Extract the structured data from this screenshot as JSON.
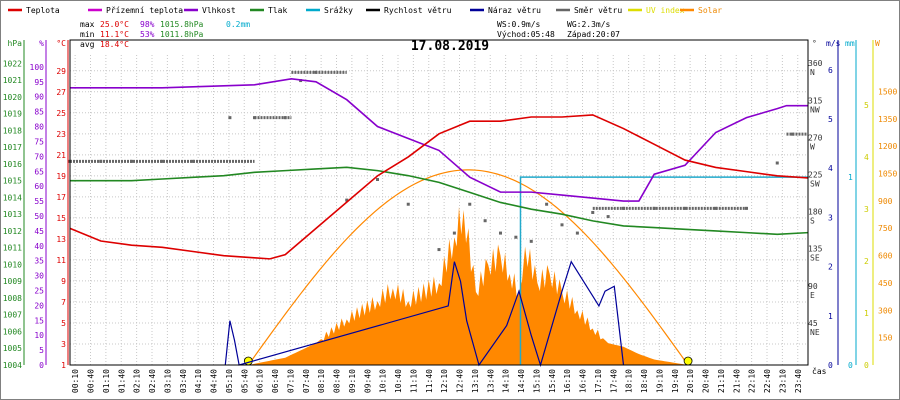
{
  "chart_data": {
    "type": "line",
    "title": "17.08.2019",
    "legend": {
      "placement": "top",
      "items": [
        {
          "name": "Teplota",
          "color": "#dd0000"
        },
        {
          "name": "Přízemní teplota",
          "color": "#cc00cc"
        },
        {
          "name": "Vlhkost",
          "color": "#8800cc"
        },
        {
          "name": "Tlak",
          "color": "#228822"
        },
        {
          "name": "Srážky",
          "color": "#00aacc"
        },
        {
          "name": "Rychlost větru",
          "color": "#000000"
        },
        {
          "name": "Náraz větru",
          "color": "#000099"
        },
        {
          "name": "Směr větru",
          "color": "#666666"
        },
        {
          "name": "UV index",
          "color": "#dddd00"
        },
        {
          "name": "Solar",
          "color": "#ff8800"
        }
      ]
    },
    "stats": {
      "max_label": "max",
      "max_temp": "25.0°C",
      "max_hum": "98%",
      "max_press": "1015.8hPa",
      "rain": "0.2mm",
      "min_label": "min",
      "min_temp": "11.1°C",
      "min_hum": "53%",
      "min_press": "1011.8hPa",
      "avg_label": "avg",
      "avg_temp": "18.4°C",
      "ws": "WS:0.9m/s",
      "wg": "WG:2.3m/s",
      "sunrise": "Východ:05:48",
      "sunset": "Západ:20:07"
    },
    "axes": {
      "hpa": {
        "label": "hPa",
        "ticks": [
          1004,
          1005,
          1006,
          1007,
          1008,
          1009,
          1010,
          1011,
          1012,
          1013,
          1014,
          1015,
          1016,
          1017,
          1018,
          1019,
          1020,
          1021,
          1022
        ]
      },
      "pct": {
        "label": "%",
        "ticks": [
          0,
          5,
          10,
          15,
          20,
          25,
          30,
          35,
          40,
          45,
          50,
          55,
          60,
          65,
          70,
          75,
          80,
          85,
          90,
          95,
          100
        ]
      },
      "temp": {
        "label": "°C",
        "ticks": [
          1,
          3,
          5,
          7,
          9,
          11,
          13,
          15,
          17,
          19,
          21,
          23,
          25,
          27,
          29
        ]
      },
      "dir": {
        "label": "°",
        "ticks": [
          "45 NE",
          "90 E",
          "135 SE",
          "180 S",
          "225 SW",
          "270 W",
          "315 NW",
          "360 N"
        ]
      },
      "ms": {
        "label": "m/s",
        "ticks": [
          0,
          1,
          2,
          3,
          4,
          5,
          6
        ]
      },
      "mm": {
        "label": "mm",
        "ticks": [
          0,
          1
        ]
      },
      "uv": {
        "label": "W",
        "ticks": [
          0,
          1,
          2,
          3,
          4,
          5
        ]
      },
      "solar": {
        "ticks": [
          150,
          300,
          450,
          600,
          750,
          900,
          1050,
          1200,
          1350,
          1500
        ]
      },
      "xlabel": "čas",
      "x_ticks": [
        "00:10",
        "00:40",
        "01:10",
        "01:40",
        "02:10",
        "02:40",
        "03:10",
        "03:40",
        "04:10",
        "04:40",
        "05:10",
        "05:40",
        "06:10",
        "06:40",
        "07:10",
        "07:40",
        "08:10",
        "08:40",
        "09:10",
        "09:40",
        "10:10",
        "10:40",
        "11:10",
        "11:40",
        "12:10",
        "12:40",
        "13:10",
        "13:40",
        "14:10",
        "14:40",
        "15:10",
        "15:40",
        "16:10",
        "16:40",
        "17:10",
        "17:40",
        "18:10",
        "18:40",
        "19:10",
        "19:40",
        "20:10",
        "20:40",
        "21:10",
        "21:40",
        "22:10",
        "22:40",
        "23:10",
        "23:40"
      ]
    },
    "grid": true,
    "series": [
      {
        "name": "Teplota",
        "unit": "°C",
        "x_hours": [
          0,
          1,
          2,
          3,
          4,
          5,
          6,
          6.5,
          7,
          8,
          9,
          10,
          11,
          12,
          13,
          14,
          15,
          16,
          17,
          18,
          19,
          20,
          21,
          22,
          23,
          24
        ],
        "values": [
          14.0,
          12.8,
          12.4,
          12.2,
          11.8,
          11.4,
          11.2,
          11.1,
          11.5,
          14.0,
          16.5,
          19.0,
          20.8,
          23.0,
          24.2,
          24.2,
          24.6,
          24.6,
          24.8,
          23.5,
          22.0,
          20.5,
          19.8,
          19.4,
          19.0,
          18.8
        ]
      },
      {
        "name": "Vlhkost",
        "unit": "%",
        "x_hours": [
          0,
          3,
          6,
          7.2,
          8,
          9,
          10,
          11,
          12,
          13,
          14,
          15,
          16,
          17,
          18,
          18.5,
          19,
          20,
          21,
          22,
          23,
          23.3,
          24
        ],
        "values": [
          93,
          93,
          94,
          96,
          95,
          89,
          80,
          76,
          72,
          63,
          58,
          58,
          57,
          56,
          55,
          55,
          64,
          67,
          78,
          83,
          86,
          87,
          87
        ]
      },
      {
        "name": "Tlak",
        "unit": "hPa",
        "x_hours": [
          0,
          1,
          2,
          3,
          4,
          5,
          6,
          7,
          8,
          9,
          10,
          11,
          12,
          13,
          14,
          15,
          16,
          17,
          18,
          19,
          20,
          21,
          22,
          23,
          24
        ],
        "values": [
          1015.0,
          1015.0,
          1015.0,
          1015.1,
          1015.2,
          1015.3,
          1015.5,
          1015.6,
          1015.7,
          1015.8,
          1015.6,
          1015.3,
          1014.9,
          1014.3,
          1013.7,
          1013.3,
          1013.0,
          1012.6,
          1012.3,
          1012.2,
          1012.1,
          1012.0,
          1011.9,
          1011.8,
          1011.9
        ]
      },
      {
        "name": "Solar",
        "unit": "W/m²",
        "x_hours": [
          5.8,
          7,
          8,
          9,
          10,
          10.5,
          11,
          12,
          12.5,
          12.8,
          13.2,
          13.6,
          14,
          14.3,
          14.6,
          14.8,
          15.2,
          15.6,
          16,
          16.5,
          17,
          17.5,
          18,
          18.5,
          19,
          20.1
        ],
        "values": [
          0,
          40,
          120,
          250,
          350,
          420,
          350,
          450,
          700,
          850,
          400,
          550,
          600,
          500,
          400,
          650,
          450,
          500,
          400,
          300,
          200,
          120,
          100,
          60,
          30,
          0
        ]
      },
      {
        "name": "Solar (clear sky)",
        "unit": "W/m²",
        "x_hours": [
          5.8,
          8,
          10,
          12,
          13,
          14,
          16,
          18,
          20.1
        ],
        "values": [
          0,
          560,
          920,
          1060,
          1070,
          1030,
          800,
          400,
          0
        ]
      },
      {
        "name": "Náraz větru",
        "unit": "m/s",
        "x_hours": [
          5.05,
          5.2,
          5.35,
          5.5,
          12.3,
          12.5,
          12.7,
          12.9,
          13.3,
          14.2,
          14.6,
          15.0,
          15.3,
          16.0,
          16.3,
          16.6,
          17.0,
          17.2,
          17.4,
          17.7,
          18.0
        ],
        "values": [
          0,
          0.9,
          0.5,
          0,
          1.2,
          2.1,
          1.7,
          0.9,
          0,
          0.8,
          1.5,
          0.6,
          0,
          1.5,
          2.1,
          1.8,
          1.4,
          1.2,
          1.5,
          1.6,
          0
        ]
      },
      {
        "name": "Srážky",
        "unit": "mm",
        "x_hours": [
          0,
          14.65,
          14.7,
          24
        ],
        "values": [
          0,
          0,
          0.2,
          0.2
        ]
      },
      {
        "name": "Směr větru",
        "unit": "°",
        "x_hours": [
          0,
          1,
          2,
          3,
          4,
          5.2,
          6,
          7,
          7.5,
          8,
          9,
          10,
          11,
          12,
          12.5,
          13,
          13.5,
          14,
          14.5,
          15,
          15.5,
          16,
          16.5,
          17,
          17.5,
          18,
          19,
          20,
          21,
          22,
          23,
          23.5
        ],
        "values": [
          247,
          247,
          247,
          247,
          247,
          300,
          300,
          300,
          345,
          355,
          200,
          225,
          195,
          140,
          160,
          195,
          175,
          160,
          155,
          150,
          195,
          170,
          160,
          185,
          180,
          190,
          190,
          190,
          190,
          190,
          245,
          280
        ]
      }
    ]
  }
}
